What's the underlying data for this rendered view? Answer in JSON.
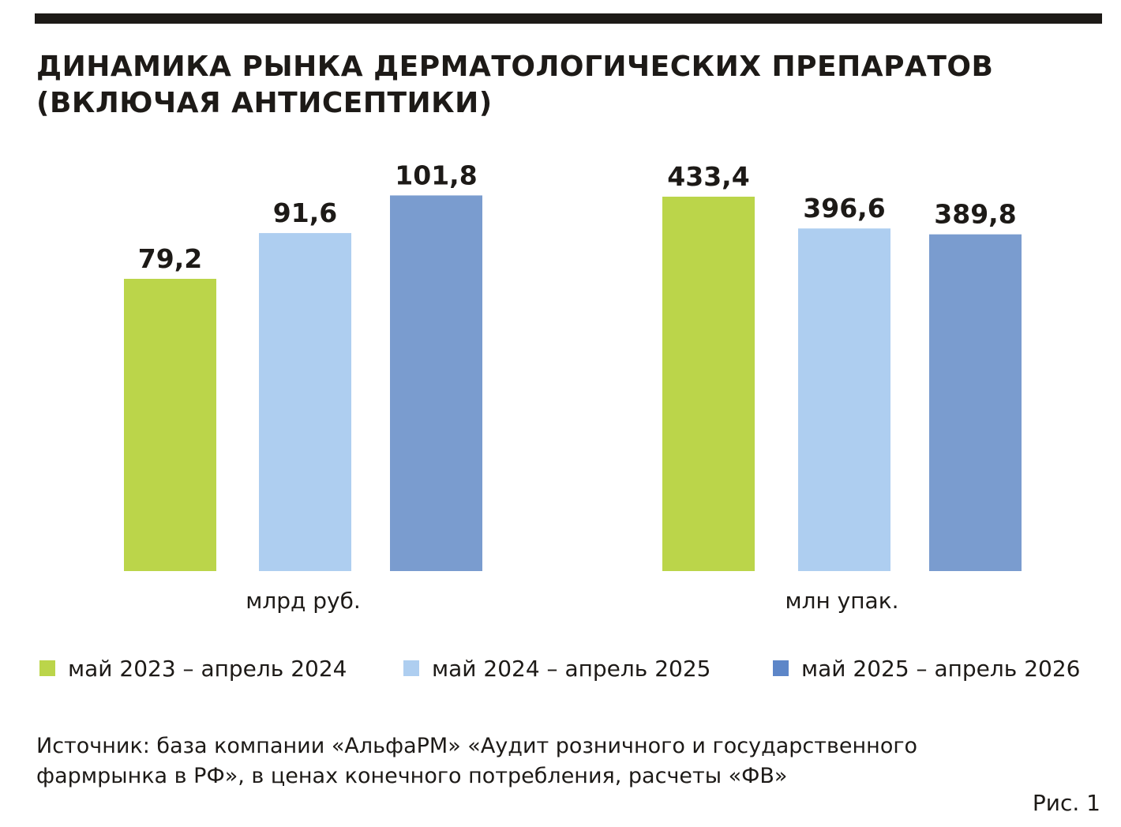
{
  "title_line1": "ДИНАМИКА РЫНКА ДЕРМАТОЛОГИЧЕСКИХ ПРЕПАРАТОВ",
  "title_line2": "(ВКЛЮЧАЯ АНТИСЕПТИКИ)",
  "colors": {
    "green": "#bbd54a",
    "light_blue": "#aecef0",
    "blue": "#7a9ccf",
    "text": "#1d1a17"
  },
  "legend": [
    {
      "label": "май 2023 – апрель 2024",
      "color": "#bbd54a"
    },
    {
      "label": "май 2024 – апрель 2025",
      "color": "#aecef0"
    },
    {
      "label": "май 2025 – апрель 2026",
      "color": "#7a9ccf"
    }
  ],
  "source_line1": "Источник: база компании «АльфаРМ» «Аудит розничного и государственного",
  "source_line2": "фармрынка в РФ», в ценах конечного потребления, расчеты «ФВ»",
  "figure_label": "Рис. 1",
  "chart_data": [
    {
      "type": "bar",
      "xlabel": "млрд руб.",
      "series": [
        {
          "name": "май 2023 – апрель 2024",
          "value": 79.2,
          "label": "79,2",
          "color": "#bbd54a"
        },
        {
          "name": "май 2024 – апрель 2025",
          "value": 91.6,
          "label": "91,6",
          "color": "#aecef0"
        },
        {
          "name": "май 2025 – апрель 2026",
          "value": 101.8,
          "label": "101,8",
          "color": "#7a9ccf"
        }
      ]
    },
    {
      "type": "bar",
      "xlabel": "млн упак.",
      "series": [
        {
          "name": "май 2023 – апрель 2024",
          "value": 433.4,
          "label": "433,4",
          "color": "#bbd54a"
        },
        {
          "name": "май 2024 – апрель 2025",
          "value": 396.6,
          "label": "396,6",
          "color": "#aecef0"
        },
        {
          "name": "май 2025 – апрель 2026",
          "value": 389.8,
          "label": "389,8",
          "color": "#7a9ccf"
        }
      ]
    }
  ]
}
